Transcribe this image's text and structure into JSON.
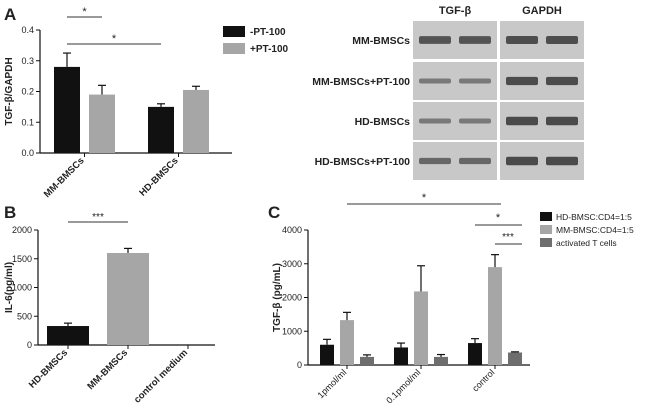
{
  "panel_letters": {
    "a": "A",
    "b": "B",
    "c": "C"
  },
  "colors": {
    "black_bar": "#111111",
    "gray_bar": "#a6a6a6",
    "dark_gray_bar": "#6e6e6e",
    "blot_background": "#c8c8c8",
    "band": "#3a3a3a"
  },
  "chart_data": [
    {
      "panel": "A",
      "type": "bar",
      "ylabel": "TGF-β/GAPDH",
      "ylim": [
        0,
        0.4
      ],
      "yticks": [
        "0.0",
        "0.1",
        "0.2",
        "0.3",
        "0.4"
      ],
      "categories": [
        "MM-BMSCs",
        "HD-BMSCs"
      ],
      "series": [
        {
          "name": "-PT-100",
          "values": [
            0.28,
            0.15
          ],
          "errors": [
            0.045,
            0.01
          ]
        },
        {
          "name": "+PT-100",
          "values": [
            0.19,
            0.205
          ],
          "errors": [
            0.03,
            0.012
          ]
        }
      ],
      "significance": [
        "*",
        "*"
      ],
      "legend": "top-right"
    },
    {
      "panel": "A-blot",
      "type": "table",
      "columns": [
        "TGF-β",
        "GAPDH"
      ],
      "rows": [
        "MM-BMSCs",
        "MM-BMSCs+PT-100",
        "HD-BMSCs",
        "HD-BMSCs+PT-100"
      ],
      "band_intensity": [
        [
          0.78,
          0.85
        ],
        [
          0.35,
          0.88
        ],
        [
          0.35,
          0.9
        ],
        [
          0.55,
          0.9
        ]
      ]
    },
    {
      "panel": "B",
      "type": "bar",
      "ylabel": "IL-6(pg/ml)",
      "ylim": [
        0,
        2000
      ],
      "yticks": [
        "0",
        "500",
        "1000",
        "1500",
        "2000"
      ],
      "categories": [
        "HD-BMSCs",
        "MM-BMSCs",
        "control medium"
      ],
      "values": [
        330,
        1600,
        0
      ],
      "errors": [
        50,
        80,
        0
      ],
      "significance": [
        "***"
      ]
    },
    {
      "panel": "C",
      "type": "bar",
      "ylabel": "TGF-β (pg/mL)",
      "ylim": [
        0,
        4000
      ],
      "yticks": [
        "0",
        "1000",
        "2000",
        "3000",
        "4000"
      ],
      "categories": [
        "1pmol/ml",
        "0.1pmol/ml",
        "control"
      ],
      "series": [
        {
          "name": "HD-BMSC:CD4=1:5",
          "values": [
            600,
            520,
            650
          ],
          "errors": [
            160,
            130,
            130
          ]
        },
        {
          "name": "MM-BMSC:CD4=1:5",
          "values": [
            1330,
            2180,
            2900
          ],
          "errors": [
            230,
            760,
            370
          ]
        },
        {
          "name": "activated T cells",
          "values": [
            240,
            240,
            370
          ],
          "errors": [
            60,
            70,
            20
          ]
        }
      ],
      "significance": [
        "*",
        "*",
        "***"
      ],
      "legend": "top-right"
    }
  ]
}
